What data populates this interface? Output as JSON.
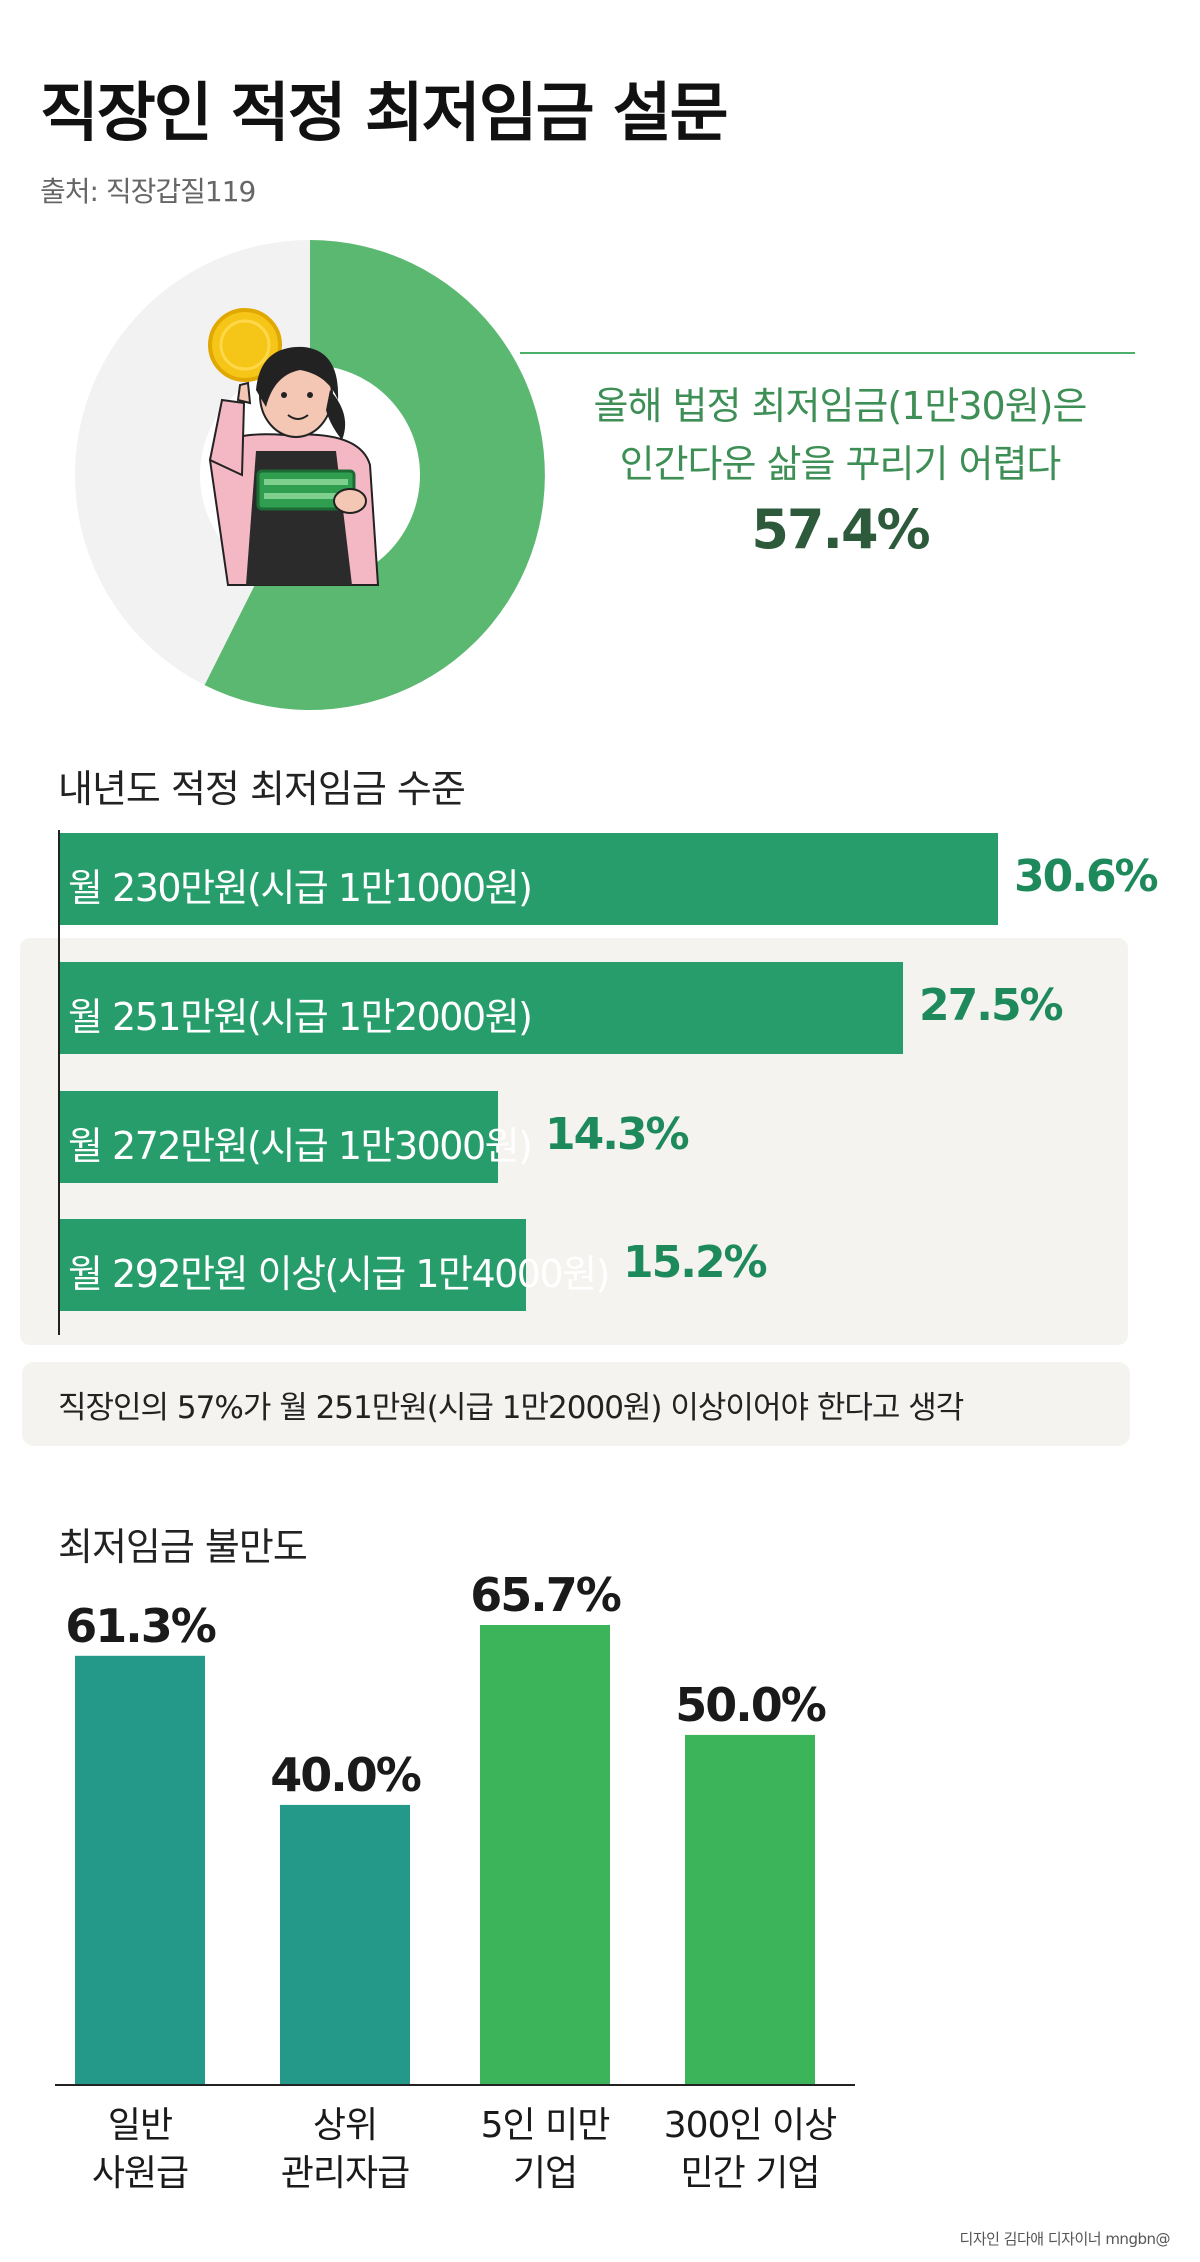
{
  "title": "직장인 적정 최저임금 설문",
  "source": "출처: 직장갑질119",
  "colors": {
    "donut_green": "#5bb871",
    "donut_gray": "#f2f2f2",
    "hbar": "#279d6c",
    "vbar_teal": "#24998a",
    "vbar_green": "#3cb55a"
  },
  "callout": {
    "line1": "올해 법정 최저임금(1만30원)은",
    "line2": "인간다운 삶을 꾸리기 어렵다",
    "percent": "57.4%"
  },
  "section2": {
    "title": "내년도 적정 최저임금 수준",
    "note": "직장인의 57%가 월 251만원(시급 1만2000원) 이상이어야 한다고 생각"
  },
  "section3": {
    "title": "최저임금 불만도"
  },
  "credit": "디자인 김다애 디자이너 mngbn@",
  "chart_data": [
    {
      "type": "pie",
      "categories": [
        "올해 법정 최저임금(1만30원)은 인간다운 삶을 꾸리기 어렵다",
        ""
      ],
      "values": [
        57.4,
        42.6
      ]
    },
    {
      "type": "bar",
      "orientation": "horizontal",
      "title": "내년도 적정 최저임금 수준",
      "categories": [
        "월 230만원(시급 1만1000원)",
        "월 251만원(시급 1만2000원)",
        "월 272만원(시급 1만3000원)",
        "월 292만원 이상(시급 1만4000원)"
      ],
      "values": [
        30.6,
        27.5,
        14.3,
        15.2
      ],
      "value_labels": [
        "30.6%",
        "27.5%",
        "14.3%",
        "15.2%"
      ],
      "xlim": [
        0,
        40
      ]
    },
    {
      "type": "bar",
      "title": "최저임금 불만도",
      "categories": [
        "일반\n사원급",
        "상위\n관리자급",
        "5인 미만\n기업",
        "300인 이상\n민간 기업"
      ],
      "values": [
        61.3,
        40.0,
        65.7,
        50.0
      ],
      "value_labels": [
        "61.3%",
        "40.0%",
        "65.7%",
        "50.0%"
      ],
      "colors": [
        "#24998a",
        "#24998a",
        "#3cb55a",
        "#3cb55a"
      ],
      "ylim": [
        0,
        70
      ]
    }
  ]
}
